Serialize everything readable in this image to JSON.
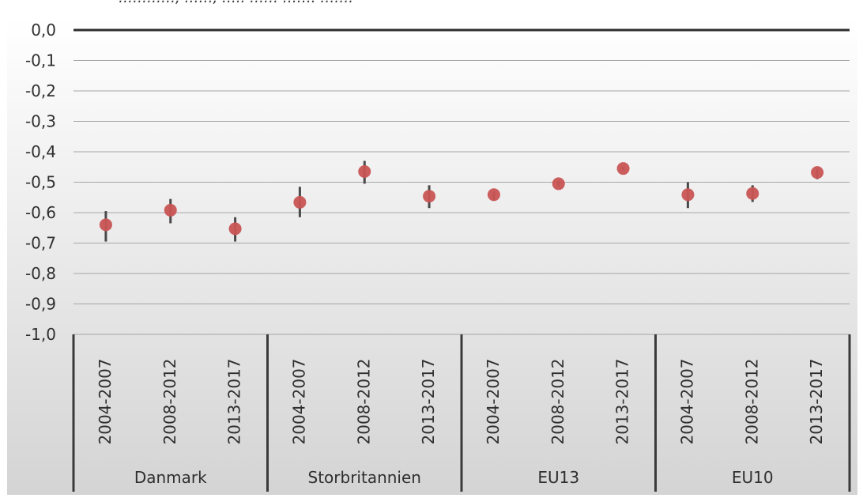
{
  "figure_note": "…………, ……, ….. …… ……. …….",
  "chart_data": {
    "type": "scatter",
    "title": "",
    "xlabel": "",
    "ylabel": "",
    "ylim": [
      -1.0,
      0.0
    ],
    "y_ticks": [
      "0,0",
      "-0,1",
      "-0,2",
      "-0,3",
      "-0,4",
      "-0,5",
      "-0,6",
      "-0,7",
      "-0,8",
      "-0,9",
      "-1,0"
    ],
    "grid": true,
    "legend": "none",
    "groups": [
      {
        "name": "Danmark",
        "categories": [
          "2004-2007",
          "2008-2012",
          "2013-2017"
        ],
        "values": [
          -0.64,
          -0.592,
          -0.653
        ],
        "error_low": [
          -0.695,
          -0.635,
          -0.695
        ],
        "error_high": [
          -0.595,
          -0.555,
          -0.615
        ]
      },
      {
        "name": "Storbritannien",
        "categories": [
          "2004-2007",
          "2008-2012",
          "2013-2017"
        ],
        "values": [
          -0.566,
          -0.465,
          -0.546
        ],
        "error_low": [
          -0.615,
          -0.505,
          -0.585
        ],
        "error_high": [
          -0.515,
          -0.43,
          -0.51
        ]
      },
      {
        "name": "EU13",
        "categories": [
          "2004-2007",
          "2008-2012",
          "2013-2017"
        ],
        "values": [
          -0.541,
          -0.505,
          -0.455
        ],
        "error_low": [
          -0.56,
          -0.515,
          -0.46
        ],
        "error_high": [
          -0.53,
          -0.495,
          -0.45
        ]
      },
      {
        "name": "EU10",
        "categories": [
          "2004-2007",
          "2008-2012",
          "2013-2017"
        ],
        "values": [
          -0.541,
          -0.537,
          -0.468
        ],
        "error_low": [
          -0.585,
          -0.565,
          -0.49
        ],
        "error_high": [
          -0.5,
          -0.51,
          -0.455
        ]
      }
    ],
    "colors": {
      "point": "#c85454",
      "error_bar": "#4a4a4a",
      "zero_line": "#2c2c2c",
      "grid": "#a6a6a6",
      "category_divider": "#3a3a3a",
      "background_top": "#ffffff",
      "background_bottom": "#d4d4d4",
      "text": "#2f2f2f"
    }
  }
}
